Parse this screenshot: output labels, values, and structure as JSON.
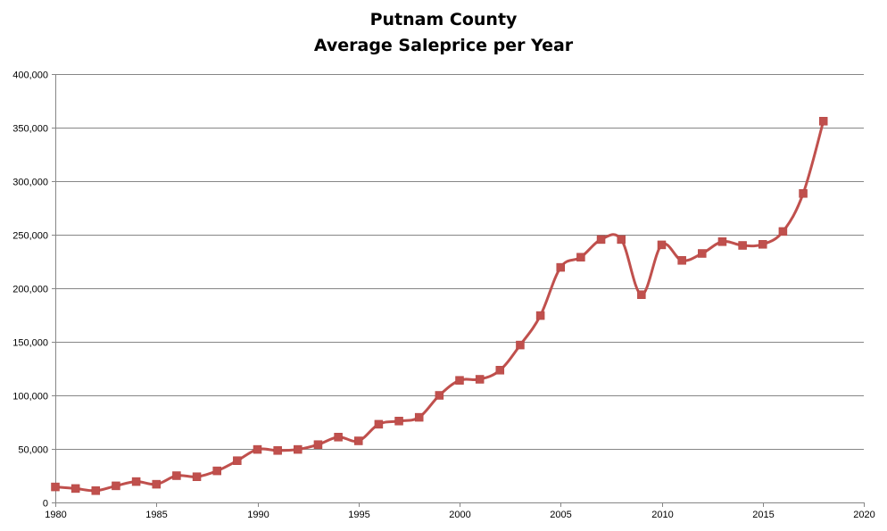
{
  "chart_data": {
    "type": "line",
    "title_lines": [
      "Putnam County",
      "Average Saleprice per Year"
    ],
    "xlim": [
      1980,
      2020
    ],
    "ylim": [
      0,
      400000
    ],
    "x_ticks": [
      1980,
      1985,
      1990,
      1995,
      2000,
      2005,
      2010,
      2015,
      2020
    ],
    "x_tick_labels": [
      "1980",
      "1985",
      "1990",
      "1995",
      "2000",
      "2005",
      "2010",
      "2015",
      "2020"
    ],
    "y_ticks": [
      0,
      50000,
      100000,
      150000,
      200000,
      250000,
      300000,
      350000,
      400000
    ],
    "y_tick_labels": [
      "0",
      "50,000",
      "100,000",
      "150,000",
      "200,000",
      "250,000",
      "300,000",
      "350,000",
      "400,000"
    ],
    "grid": "horizontal",
    "legend": "none",
    "series": [
      {
        "color": "#C0504D",
        "marker": "square",
        "smooth": true,
        "x": [
          1980,
          1981,
          1982,
          1983,
          1984,
          1985,
          1986,
          1987,
          1988,
          1989,
          1990,
          1991,
          1992,
          1993,
          1994,
          1995,
          1996,
          1997,
          1998,
          1999,
          2000,
          2001,
          2002,
          2003,
          2004,
          2005,
          2006,
          2007,
          2008,
          2009,
          2010,
          2011,
          2012,
          2013,
          2014,
          2015,
          2016,
          2017,
          2018
        ],
        "y": [
          14500,
          13000,
          11000,
          15500,
          19500,
          17000,
          25000,
          24000,
          29500,
          39000,
          49500,
          48500,
          49500,
          54000,
          61000,
          57500,
          73000,
          76000,
          79500,
          100000,
          114000,
          115000,
          123500,
          147000,
          174500,
          219500,
          229000,
          245500,
          245500,
          194000,
          240500,
          226000,
          232500,
          243500,
          240000,
          241000,
          253000,
          288500,
          356000
        ]
      }
    ]
  }
}
